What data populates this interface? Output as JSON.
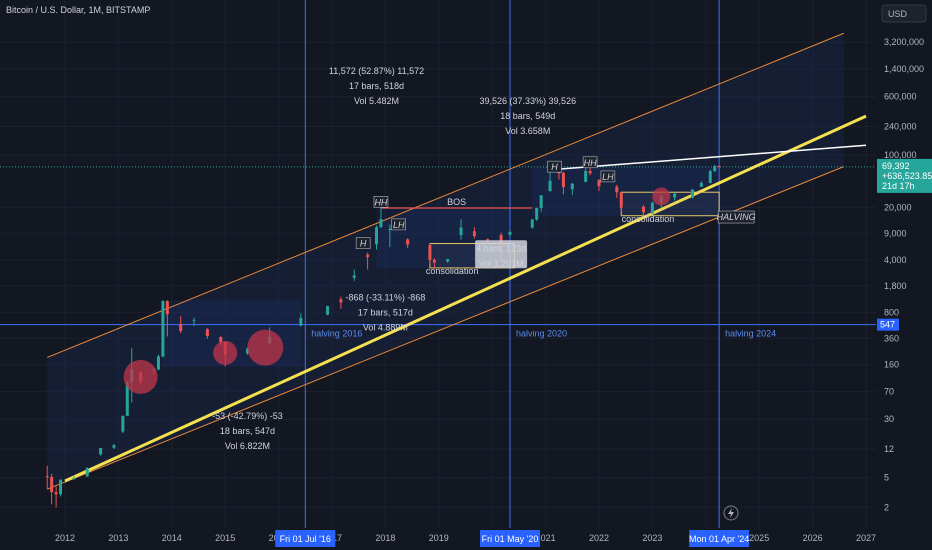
{
  "header": {
    "title": "Bitcoin / U.S. Dollar, 1M, BITSTAMP"
  },
  "price_scale": {
    "currency": "USD"
  },
  "chart_data": {
    "type": "candlestick",
    "title": "Bitcoin / U.S. Dollar, 1M, BITSTAMP",
    "y_scale": "log",
    "y_ticks": [
      "3,200,000",
      "1,400,000",
      "600,000",
      "240,000",
      "100,000",
      "20,000",
      "9,000",
      "4,000",
      "1,800",
      "800",
      "360",
      "160",
      "70",
      "30",
      "12",
      "5",
      "2"
    ],
    "x_ticks": [
      "2012",
      "2013",
      "2014",
      "2015",
      "2016",
      "2017",
      "2018",
      "2019",
      "2020",
      "2021",
      "2022",
      "2023",
      "2024",
      "2025",
      "2026",
      "2027"
    ],
    "colors": {
      "up": "#26a69a",
      "down": "#ef5350",
      "trendline": "#f5e050",
      "channel": "#e8893a",
      "marker": "#3d6fff",
      "circle": "#c0364a"
    },
    "candles": [
      {
        "t": "2011-09",
        "o": 5.2,
        "h": 7.2,
        "l": 3.5,
        "c": 5.1
      },
      {
        "t": "2011-10",
        "o": 5.1,
        "h": 5.6,
        "l": 2.2,
        "c": 3.2
      },
      {
        "t": "2011-11",
        "o": 3.2,
        "h": 3.8,
        "l": 2.0,
        "c": 3.0
      },
      {
        "t": "2011-12",
        "o": 3.0,
        "h": 4.5,
        "l": 2.8,
        "c": 4.7
      },
      {
        "t": "2012-03",
        "o": 4.9,
        "h": 5.3,
        "l": 4.6,
        "c": 4.9
      },
      {
        "t": "2012-06",
        "o": 5.2,
        "h": 6.9,
        "l": 5.1,
        "c": 6.7
      },
      {
        "t": "2012-09",
        "o": 10.2,
        "h": 12.4,
        "l": 9.8,
        "c": 12.4
      },
      {
        "t": "2012-12",
        "o": 12.5,
        "h": 14.0,
        "l": 12.0,
        "c": 13.5
      },
      {
        "t": "2013-02",
        "o": 20.5,
        "h": 31.9,
        "l": 19.5,
        "c": 33.4
      },
      {
        "t": "2013-03",
        "o": 33.4,
        "h": 95.7,
        "l": 33.1,
        "c": 93.0
      },
      {
        "t": "2013-04",
        "o": 93.0,
        "h": 266,
        "l": 50,
        "c": 139
      },
      {
        "t": "2013-06",
        "o": 129,
        "h": 130,
        "l": 88,
        "c": 97
      },
      {
        "t": "2013-09",
        "o": 135,
        "h": 146,
        "l": 117,
        "c": 138
      },
      {
        "t": "2013-10",
        "o": 138,
        "h": 218,
        "l": 135,
        "c": 206
      },
      {
        "t": "2013-11",
        "o": 206,
        "h": 1163,
        "l": 200,
        "c": 1128
      },
      {
        "t": "2013-12",
        "o": 1128,
        "h": 1160,
        "l": 380,
        "c": 754
      },
      {
        "t": "2014-03",
        "o": 560,
        "h": 710,
        "l": 420,
        "c": 450
      },
      {
        "t": "2014-06",
        "o": 620,
        "h": 680,
        "l": 525,
        "c": 635
      },
      {
        "t": "2014-09",
        "o": 475,
        "h": 490,
        "l": 355,
        "c": 386
      },
      {
        "t": "2014-12",
        "o": 375,
        "h": 381,
        "l": 300,
        "c": 320
      },
      {
        "t": "2015-01",
        "o": 320,
        "h": 320,
        "l": 152,
        "c": 217
      },
      {
        "t": "2015-06",
        "o": 228,
        "h": 268,
        "l": 215,
        "c": 263
      },
      {
        "t": "2015-11",
        "o": 311,
        "h": 502,
        "l": 300,
        "c": 377
      },
      {
        "t": "2016-06",
        "o": 530,
        "h": 778,
        "l": 520,
        "c": 673
      },
      {
        "t": "2016-12",
        "o": 742,
        "h": 980,
        "l": 730,
        "c": 963
      },
      {
        "t": "2017-03",
        "o": 1190,
        "h": 1290,
        "l": 890,
        "c": 1080
      },
      {
        "t": "2017-06",
        "o": 2300,
        "h": 2980,
        "l": 2100,
        "c": 2480
      },
      {
        "t": "2017-09",
        "o": 4700,
        "h": 5000,
        "l": 2980,
        "c": 4340
      },
      {
        "t": "2017-11",
        "o": 6440,
        "h": 11500,
        "l": 5500,
        "c": 10900
      },
      {
        "t": "2017-12",
        "o": 10900,
        "h": 19666,
        "l": 10700,
        "c": 13880
      },
      {
        "t": "2018-02",
        "o": 10100,
        "h": 11800,
        "l": 5900,
        "c": 10300
      },
      {
        "t": "2018-06",
        "o": 7500,
        "h": 7760,
        "l": 5750,
        "c": 6400
      },
      {
        "t": "2018-11",
        "o": 6300,
        "h": 6600,
        "l": 3460,
        "c": 4000
      },
      {
        "t": "2018-12",
        "o": 4000,
        "h": 4200,
        "l": 3120,
        "c": 3700
      },
      {
        "t": "2019-03",
        "o": 3800,
        "h": 4100,
        "l": 3650,
        "c": 4100
      },
      {
        "t": "2019-06",
        "o": 8550,
        "h": 13880,
        "l": 7440,
        "c": 10800
      },
      {
        "t": "2019-09",
        "o": 9600,
        "h": 10900,
        "l": 7700,
        "c": 8300
      },
      {
        "t": "2019-12",
        "o": 7550,
        "h": 7750,
        "l": 6450,
        "c": 7200
      },
      {
        "t": "2020-03",
        "o": 8600,
        "h": 9200,
        "l": 3850,
        "c": 6410
      },
      {
        "t": "2020-05",
        "o": 8620,
        "h": 10080,
        "l": 8130,
        "c": 9450
      },
      {
        "t": "2020-10",
        "o": 10780,
        "h": 14100,
        "l": 10420,
        "c": 13800
      },
      {
        "t": "2020-11",
        "o": 13800,
        "h": 19850,
        "l": 13200,
        "c": 19700
      },
      {
        "t": "2020-12",
        "o": 19700,
        "h": 29300,
        "l": 17600,
        "c": 28990
      },
      {
        "t": "2021-02",
        "o": 33100,
        "h": 58300,
        "l": 32400,
        "c": 45200
      },
      {
        "t": "2021-04",
        "o": 58800,
        "h": 64800,
        "l": 47000,
        "c": 57700
      },
      {
        "t": "2021-05",
        "o": 57700,
        "h": 59500,
        "l": 30000,
        "c": 37300
      },
      {
        "t": "2021-07",
        "o": 35000,
        "h": 42300,
        "l": 29300,
        "c": 41500
      },
      {
        "t": "2021-10",
        "o": 43800,
        "h": 66900,
        "l": 43300,
        "c": 61300
      },
      {
        "t": "2021-11",
        "o": 61300,
        "h": 69000,
        "l": 53500,
        "c": 57000
      },
      {
        "t": "2022-01",
        "o": 46200,
        "h": 47900,
        "l": 33100,
        "c": 38500
      },
      {
        "t": "2022-05",
        "o": 37700,
        "h": 40000,
        "l": 26700,
        "c": 31800
      },
      {
        "t": "2022-06",
        "o": 31800,
        "h": 31900,
        "l": 17600,
        "c": 19900
      },
      {
        "t": "2022-11",
        "o": 20500,
        "h": 21400,
        "l": 15500,
        "c": 17200
      },
      {
        "t": "2023-01",
        "o": 16500,
        "h": 23900,
        "l": 16500,
        "c": 23100
      },
      {
        "t": "2023-03",
        "o": 23100,
        "h": 29200,
        "l": 19600,
        "c": 28500
      },
      {
        "t": "2023-06",
        "o": 27200,
        "h": 31400,
        "l": 24800,
        "c": 30500
      },
      {
        "t": "2023-10",
        "o": 26900,
        "h": 35000,
        "l": 26500,
        "c": 34700
      },
      {
        "t": "2023-12",
        "o": 37700,
        "h": 44700,
        "l": 37600,
        "c": 42300
      },
      {
        "t": "2024-02",
        "o": 42600,
        "h": 64000,
        "l": 41800,
        "c": 61200
      },
      {
        "t": "2024-03",
        "o": 61200,
        "h": 73800,
        "l": 59000,
        "c": 71300
      },
      {
        "t": "2024-04",
        "o": 71300,
        "h": 72700,
        "l": 66000,
        "c": 69392
      }
    ],
    "halvings": [
      {
        "label": "halving 2016",
        "date_tag": "Fri 01 Jul '16"
      },
      {
        "label": "halving 2020",
        "date_tag": "Fri 01 May '20"
      },
      {
        "label": "halving 2024",
        "date_tag": "Mon 01 Apr '24"
      }
    ],
    "annotations": [
      {
        "lines": [
          "11,572 (52.87%) 11,572",
          "17 bars, 518d",
          "Vol 5.482M"
        ]
      },
      {
        "lines": [
          "39,526 (37.33%) 39,526",
          "18 bars, 549d",
          "Vol 3.658M"
        ]
      },
      {
        "lines": [
          "-868 (-33.11%) -868",
          "17 bars, 517d",
          "Vol 4.889M"
        ]
      },
      {
        "lines": [
          "-53 (-42.79%) -53",
          "18 bars, 547d",
          "Vol 6.822M"
        ]
      },
      {
        "lines": [
          "4 bars, 123d",
          "Vol 1.201M"
        ]
      }
    ],
    "labels": {
      "hh": "HH",
      "lh": "LH",
      "h": "H",
      "bos": "BOS",
      "consolidation": "consolidation",
      "halving_upper": "HALVING"
    },
    "price_tags": {
      "current": "69,392",
      "current_change": "+636,523.85%",
      "countdown": "21d 17h",
      "level": "547"
    }
  }
}
